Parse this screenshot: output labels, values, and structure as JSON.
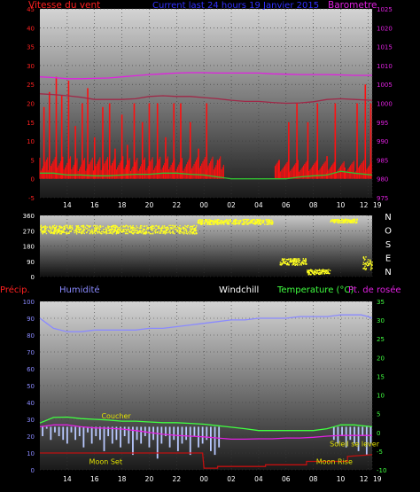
{
  "chart_data": [
    {
      "type": "line",
      "title": "Current last 24 hours 19 Janvier 2015",
      "left_label": "Vitesse du vent",
      "right_label": "Barometre",
      "x_ticks": [
        "14",
        "16",
        "18",
        "20",
        "22",
        "00",
        "02",
        "04",
        "06",
        "08",
        "10",
        "12",
        "19"
      ],
      "y_left": {
        "ticks": [
          "-5",
          "0",
          "5",
          "10",
          "15",
          "20",
          "25",
          "30",
          "35",
          "40",
          "45"
        ],
        "range": [
          -5,
          45
        ]
      },
      "y_right": {
        "ticks": [
          "975",
          "980",
          "985",
          "990",
          "995",
          "1000",
          "1005",
          "1010",
          "1015",
          "1020",
          "1025"
        ],
        "range": [
          975,
          1025
        ]
      },
      "series": [
        {
          "axis": "right",
          "color": "#e020e0",
          "x": [
            12.0,
            13,
            14,
            15,
            16,
            17,
            18,
            19,
            20,
            21,
            22,
            23,
            24,
            25,
            26,
            27,
            28,
            29,
            30,
            31,
            32,
            33,
            34,
            35,
            36.3
          ],
          "values": [
            1007,
            1006.8,
            1006.5,
            1006.5,
            1006.6,
            1006.7,
            1007,
            1007.3,
            1007.6,
            1007.8,
            1008,
            1008.1,
            1008.1,
            1008,
            1008,
            1008,
            1008,
            1007.8,
            1007.7,
            1007.6,
            1007.6,
            1007.6,
            1007.5,
            1007.4,
            1007.4
          ]
        },
        {
          "axis": "left",
          "color": "#a02848",
          "x": [
            12.0,
            13,
            14,
            15,
            16,
            17,
            18,
            19,
            20,
            21,
            22,
            23,
            24,
            25,
            26,
            27,
            28,
            29,
            30,
            31,
            32,
            33,
            34,
            35,
            36.3
          ],
          "values": [
            22.5,
            22.3,
            22,
            21.6,
            21,
            21,
            21,
            21.2,
            21.8,
            22,
            21.8,
            21.8,
            21.5,
            21.2,
            20.8,
            20.5,
            20.5,
            20.2,
            20,
            20.1,
            20.4,
            21,
            21.2,
            21,
            20.8
          ]
        },
        {
          "axis": "left",
          "color": "#30c030",
          "name": "",
          "x": [
            12.0,
            13,
            14,
            15,
            16,
            17,
            18,
            19,
            20,
            21,
            22,
            23,
            24,
            25,
            26,
            27,
            28,
            29,
            30,
            31,
            32,
            33,
            34,
            35,
            36.3
          ],
          "values": [
            1.5,
            1.5,
            1,
            1,
            0.8,
            0.8,
            1,
            1.2,
            1.2,
            1.5,
            1.5,
            1.2,
            1,
            0.5,
            0,
            0,
            0,
            0,
            0,
            0.5,
            0.8,
            1,
            2,
            1.5,
            1
          ]
        }
      ],
      "gust_bars": {
        "color": "#ff1010",
        "x": [
          12.3,
          12.7,
          13.2,
          13.6,
          14.1,
          14.6,
          15.1,
          15.5,
          16.0,
          16.6,
          17.1,
          17.5,
          18.0,
          18.4,
          18.9,
          19.5,
          20.0,
          20.6,
          21.2,
          21.8,
          22.3,
          23.0,
          23.6,
          24.2,
          25.0,
          29.5,
          30.2,
          30.8,
          31.6,
          32.3,
          33.0,
          33.6,
          34.3,
          35.2,
          35.8,
          36.2
        ],
        "values": [
          19,
          23,
          27,
          22,
          26,
          14,
          20,
          24,
          11,
          19,
          20,
          8,
          17,
          9,
          20,
          15,
          20,
          20,
          11,
          20,
          20,
          15,
          8,
          20,
          5,
          5,
          15,
          20,
          15,
          20,
          6,
          20,
          3,
          20,
          25,
          20
        ]
      }
    },
    {
      "type": "scatter",
      "title": "",
      "right_label_letters": [
        "N",
        "O",
        "S",
        "E",
        "N"
      ],
      "x_ticks": [],
      "y_left": {
        "ticks": [
          "0",
          "90",
          "180",
          "270",
          "360"
        ],
        "range": [
          0,
          360
        ]
      },
      "color": "#ffff20",
      "clusters": [
        {
          "x_start": 12.0,
          "x_end": 23.5,
          "y_center": 280,
          "spread": 25
        },
        {
          "x_start": 23.5,
          "x_end": 29.0,
          "y_center": 325,
          "spread": 15
        },
        {
          "x_start": 29.5,
          "x_end": 31.5,
          "y_center": 90,
          "spread": 20
        },
        {
          "x_start": 31.5,
          "x_end": 33.2,
          "y_center": 30,
          "spread": 15
        },
        {
          "x_start": 33.2,
          "x_end": 35.2,
          "y_center": 330,
          "spread": 12
        },
        {
          "x_start": 35.6,
          "x_end": 36.3,
          "y_center": 80,
          "spread": 40
        }
      ]
    },
    {
      "type": "line",
      "title": "",
      "legend": [
        {
          "label": "Précip.",
          "color": "#ff2020"
        },
        {
          "label": "Humidité",
          "color": "#8a8aff"
        },
        {
          "label": "Windchill",
          "color": "#ffffff"
        },
        {
          "label": "Temperature (°C)",
          "color": "#40ff40"
        },
        {
          "label": "Pt. de rosée",
          "color": "#e020e0"
        }
      ],
      "annotations": [
        {
          "text": "Coucher",
          "x": 16.5,
          "y": 3.7
        },
        {
          "text": "Moon Set",
          "x": 15.6,
          "y": -8.5
        },
        {
          "text": "Soleil se lever",
          "x": 33.2,
          "y": -3.7
        },
        {
          "text": "Moon Rise",
          "x": 32.2,
          "y": -8.5
        }
      ],
      "x_ticks": [
        "14",
        "16",
        "18",
        "20",
        "22",
        "00",
        "02",
        "04",
        "06",
        "08",
        "10",
        "12",
        "19"
      ],
      "y_left": {
        "ticks": [
          "0",
          "10",
          "20",
          "30",
          "40",
          "50",
          "60",
          "70",
          "80",
          "90",
          "100"
        ],
        "range": [
          0,
          100
        ]
      },
      "y_right": {
        "ticks": [
          "-10",
          "-5",
          "0",
          "5",
          "10",
          "15",
          "20",
          "25",
          "30",
          "35"
        ],
        "range": [
          -10,
          35
        ]
      },
      "series": [
        {
          "name": "Humidité",
          "axis": "left",
          "color": "#8a8aff",
          "x": [
            12.0,
            12.5,
            13,
            14,
            15,
            16,
            17,
            18,
            19,
            20,
            21,
            22,
            23,
            24,
            25,
            26,
            27,
            28,
            29,
            30,
            31,
            32,
            33,
            34,
            35,
            35.5,
            36,
            36.3
          ],
          "values": [
            90,
            87,
            84,
            82,
            82,
            83,
            83,
            83,
            83,
            84,
            84,
            85,
            86,
            87,
            88,
            89,
            89,
            90,
            90,
            90,
            91,
            91,
            91,
            92,
            92,
            92,
            91,
            90
          ]
        },
        {
          "name": "Temperature (°C)",
          "axis": "right",
          "color": "#40ff40",
          "x": [
            12.0,
            13,
            14,
            15,
            16,
            17,
            18,
            19,
            20,
            21,
            22,
            23,
            24,
            25,
            26,
            27,
            28,
            29,
            30,
            31,
            32,
            33,
            34,
            35,
            36.3
          ],
          "values": [
            2.5,
            4,
            4.1,
            3.7,
            3.5,
            3.3,
            3,
            3,
            2.8,
            2.6,
            2.6,
            2.4,
            2.2,
            1.8,
            1.4,
            1,
            0.5,
            0.5,
            0.5,
            0.5,
            0.5,
            1,
            2,
            2,
            1.5
          ]
        },
        {
          "name": "Pt. de rosée",
          "axis": "right",
          "color": "#e020e0",
          "x": [
            12.0,
            13,
            14,
            15,
            16,
            17,
            18,
            19,
            20,
            21,
            22,
            23,
            24,
            25,
            26,
            27,
            28,
            29,
            30,
            31,
            32,
            33,
            34,
            35,
            36.3
          ],
          "values": [
            1.5,
            2,
            2,
            1.5,
            1.2,
            1.1,
            0.9,
            0.5,
            0,
            -0.5,
            -0.8,
            -1,
            -1.2,
            -1.5,
            -1.8,
            -1.8,
            -1.7,
            -1.7,
            -1.5,
            -1.5,
            -1.3,
            -1,
            -0.8,
            -0.8,
            -0.8
          ]
        },
        {
          "name": "Précip.",
          "axis": "left",
          "color": "#c01010",
          "x": [
            12.0,
            23.9,
            23.9,
            24.0,
            24.0,
            25.0,
            25.0,
            28.5,
            28.5,
            31.5,
            31.5,
            34.5,
            34.5,
            36.3
          ],
          "values": [
            10,
            10,
            10,
            1,
            1,
            1,
            2,
            2,
            3,
            3,
            5,
            5,
            8,
            9
          ]
        }
      ],
      "windchill_bars_color": "#b8c8ff",
      "windchill_bars": {
        "x": [
          12.2,
          12.5,
          12.8,
          13.1,
          13.4,
          13.7,
          14.0,
          14.3,
          14.6,
          14.9,
          15.2,
          15.5,
          15.8,
          16.1,
          16.4,
          16.7,
          17.0,
          17.3,
          17.6,
          17.9,
          18.2,
          18.5,
          18.8,
          19.1,
          19.4,
          19.7,
          20.0,
          20.3,
          20.6,
          20.9,
          21.2,
          21.5,
          21.8,
          22.1,
          22.4,
          22.7,
          23.0,
          23.3,
          23.6,
          23.9,
          24.2,
          24.5,
          24.8,
          25.1,
          33.5,
          33.8,
          34.1,
          34.4,
          34.7,
          35.0,
          35.3,
          35.6,
          35.9,
          36.2
        ],
        "values": [
          -1,
          1,
          -2,
          0,
          -1,
          -2,
          -3,
          0,
          -2,
          -1,
          -4,
          0,
          -3,
          -1,
          -2,
          -5,
          -1,
          -3,
          -2,
          -4,
          -1,
          -3,
          -6,
          -2,
          -3,
          -1,
          -4,
          -2,
          -7,
          -3,
          -1,
          -4,
          -2,
          -5,
          -3,
          -2,
          -6,
          -1,
          -4,
          -3,
          -2,
          -5,
          -6,
          -4,
          -2,
          -3,
          -1,
          -4,
          -2,
          -3,
          -5,
          -1,
          -6,
          -3
        ]
      }
    }
  ]
}
